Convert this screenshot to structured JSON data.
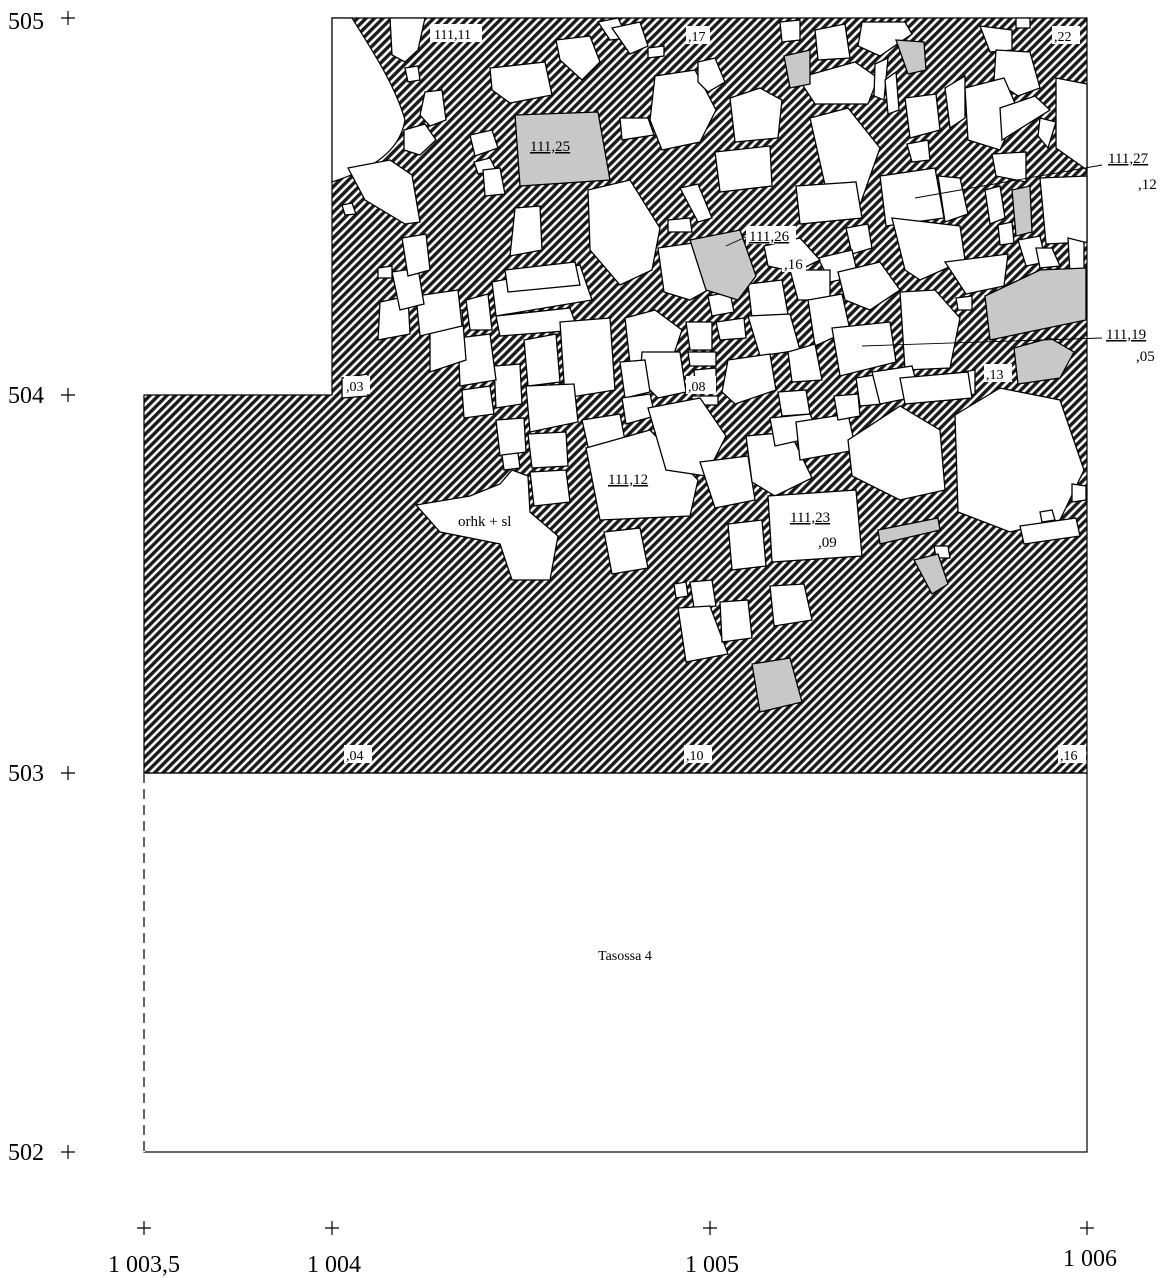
{
  "axes": {
    "y_labels": [
      "505",
      "504",
      "503",
      "502"
    ],
    "x_labels": [
      "1 003,5",
      "1 004",
      "1 005",
      "1 006"
    ]
  },
  "colors": {
    "hatch_dark": "#1a1a1a",
    "stone_fill": "#ffffff",
    "stone_grey": "#c8c8c8"
  },
  "labels": {
    "l_111_11": "111,11",
    "l_17": ",17",
    "l_22": ",22",
    "l_111_25": "111,25",
    "l_111_27": "111,27",
    "l_12": ",12",
    "l_111_26": "111,26",
    "l_16a": ",16",
    "l_111_19": "111,19",
    "l_05": ",05",
    "l_03": ",03",
    "l_08": ",08",
    "l_13": ",13",
    "l_111_12": "111,12",
    "l_orhk": "orhk + sl",
    "l_111_23": "111,23",
    "l_09": ",09",
    "l_04": ",04",
    "l_10": ",10",
    "l_16b": ",16",
    "l_tasossa": "Tasossa 4"
  }
}
